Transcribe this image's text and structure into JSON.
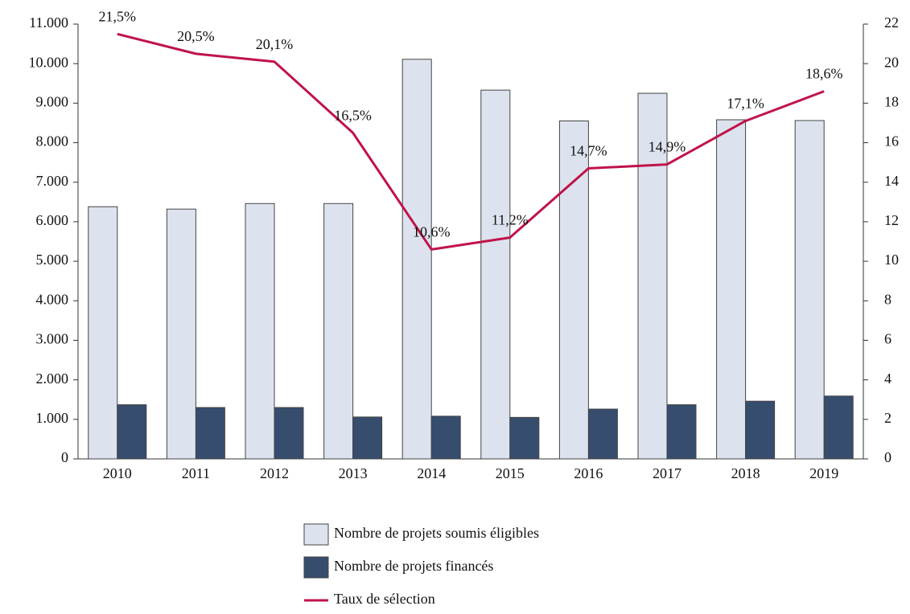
{
  "chart_data": {
    "type": "bar",
    "categories": [
      "2010",
      "2011",
      "2012",
      "2013",
      "2014",
      "2015",
      "2016",
      "2017",
      "2018",
      "2019"
    ],
    "series": [
      {
        "name": "Nombre de projets soumis éligibles",
        "color": "#dde3ee",
        "type": "bar",
        "values": [
          6380,
          6320,
          6460,
          6460,
          10110,
          9330,
          8550,
          9250,
          8580,
          8560
        ]
      },
      {
        "name": "Nombre de projets financés",
        "color": "#364d6e",
        "type": "bar",
        "values": [
          1370,
          1300,
          1300,
          1060,
          1080,
          1050,
          1260,
          1370,
          1460,
          1590
        ]
      },
      {
        "name": "Taux de sélection",
        "color": "#c0134a",
        "type": "line",
        "axis": "y2",
        "values": [
          21.5,
          20.5,
          20.1,
          16.5,
          10.6,
          11.2,
          14.7,
          14.9,
          17.1,
          18.6
        ],
        "value_labels": [
          "21,5%",
          "20,5%",
          "20,1%",
          "16,5%",
          "10,6%",
          "11,2%",
          "14,7%",
          "14,9%",
          "17,1%",
          "18,6%"
        ]
      }
    ],
    "ylim": [
      0,
      11000
    ],
    "yticks": [
      0,
      {
        "value": 1000,
        "label": "1.000"
      },
      {
        "value": 2000,
        "label": "2.000"
      },
      {
        "value": 3000,
        "label": "3.000"
      },
      {
        "value": 4000,
        "label": "4.000"
      },
      {
        "value": 5000,
        "label": "5.000"
      },
      {
        "value": 6000,
        "label": "6.000"
      },
      {
        "value": 7000,
        "label": "7.000"
      },
      {
        "value": 8000,
        "label": "8.000"
      },
      {
        "value": 9000,
        "label": "9.000"
      },
      {
        "value": 10000,
        "label": "10.000"
      },
      {
        "value": 11000,
        "label": "11.000"
      }
    ],
    "y2lim": [
      0,
      22
    ],
    "y2ticks": [
      0,
      2,
      4,
      6,
      8,
      10,
      12,
      14,
      16,
      18,
      20,
      22
    ],
    "grid": false
  }
}
